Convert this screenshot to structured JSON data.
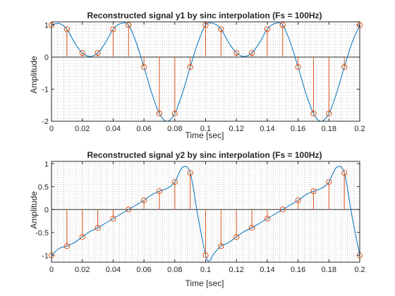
{
  "window": {
    "background": "#ffffff"
  },
  "chart_data": [
    {
      "type": "line",
      "title": "Reconstructed signal y1 by sinc interpolation (Fs = 100Hz)",
      "xlabel": "Time [sec]",
      "ylabel": "Amplitude",
      "xlim": [
        0,
        0.2
      ],
      "ylim": [
        -2,
        1.1
      ],
      "xticks": [
        0,
        0.02,
        0.04,
        0.06,
        0.08,
        0.1,
        0.12,
        0.14,
        0.16,
        0.18,
        0.2
      ],
      "xtick_labels": [
        "0",
        "0.02",
        "0.04",
        "0.06",
        "0.08",
        "0.1",
        "0.12",
        "0.14",
        "0.16",
        "0.18",
        "0.2"
      ],
      "yticks": [
        -2,
        -1,
        0,
        1
      ],
      "ytick_labels": [
        "-2",
        "-1",
        "0",
        "1"
      ],
      "grid": "minor dotted",
      "series": [
        {
          "kind": "line",
          "color": "#0072BD",
          "x": [
            0,
            0.005,
            0.01,
            0.015,
            0.02,
            0.025,
            0.03,
            0.035,
            0.04,
            0.045,
            0.05,
            0.055,
            0.06,
            0.065,
            0.07,
            0.075,
            0.08,
            0.085,
            0.09,
            0.095,
            0.1,
            0.105,
            0.11,
            0.115,
            0.12,
            0.125,
            0.13,
            0.135,
            0.14,
            0.145,
            0.15,
            0.155,
            0.16,
            0.165,
            0.17,
            0.175,
            0.18,
            0.185,
            0.19,
            0.195,
            0.2
          ],
          "y": [
            1.0,
            1.05,
            0.87,
            0.45,
            0.13,
            0.02,
            0.13,
            0.45,
            0.87,
            1.05,
            1.0,
            0.45,
            -0.31,
            -1.12,
            -1.76,
            -2.0,
            -1.76,
            -1.12,
            -0.31,
            0.45,
            1.0,
            1.05,
            0.87,
            0.45,
            0.13,
            0.02,
            0.13,
            0.45,
            0.87,
            1.05,
            1.0,
            0.45,
            -0.31,
            -1.12,
            -1.76,
            -2.0,
            -1.76,
            -1.12,
            -0.31,
            0.45,
            1.0
          ]
        },
        {
          "kind": "stem",
          "color": "#D95319",
          "x": [
            0,
            0.01,
            0.02,
            0.03,
            0.04,
            0.05,
            0.06,
            0.07,
            0.08,
            0.09,
            0.1,
            0.11,
            0.12,
            0.13,
            0.14,
            0.15,
            0.16,
            0.17,
            0.18,
            0.19,
            0.2
          ],
          "y": [
            1.0,
            0.87,
            0.13,
            0.13,
            0.87,
            1.0,
            -0.31,
            -1.76,
            -1.76,
            -0.31,
            1.0,
            0.87,
            0.13,
            0.13,
            0.87,
            1.0,
            -0.31,
            -1.76,
            -1.76,
            -0.31,
            1.0
          ]
        }
      ]
    },
    {
      "type": "line",
      "title": "Reconstructed signal y2 by sinc interpolation (Fs = 100Hz)",
      "xlabel": "Time [sec]",
      "ylabel": "Amplitude",
      "xlim": [
        0,
        0.2
      ],
      "ylim": [
        -1.15,
        1.05
      ],
      "xticks": [
        0,
        0.02,
        0.04,
        0.06,
        0.08,
        0.1,
        0.12,
        0.14,
        0.16,
        0.18,
        0.2
      ],
      "xtick_labels": [
        "0",
        "0.02",
        "0.04",
        "0.06",
        "0.08",
        "0.1",
        "0.12",
        "0.14",
        "0.16",
        "0.18",
        "0.2"
      ],
      "yticks": [
        -1,
        -0.5,
        0,
        0.5,
        1
      ],
      "ytick_labels": [
        "-1",
        "-0.5",
        "0",
        "0.5",
        "1"
      ],
      "grid": "minor dotted",
      "series": [
        {
          "kind": "line",
          "color": "#0072BD",
          "x": [
            0,
            0.005,
            0.01,
            0.015,
            0.02,
            0.025,
            0.03,
            0.035,
            0.04,
            0.045,
            0.05,
            0.055,
            0.06,
            0.065,
            0.07,
            0.075,
            0.08,
            0.085,
            0.09,
            0.095,
            0.1,
            0.1025,
            0.105,
            0.11,
            0.115,
            0.12,
            0.125,
            0.13,
            0.135,
            0.14,
            0.145,
            0.15,
            0.155,
            0.16,
            0.165,
            0.17,
            0.175,
            0.18,
            0.185,
            0.19,
            0.195,
            0.2
          ],
          "y": [
            -1.0,
            -0.85,
            -0.8,
            -0.72,
            -0.6,
            -0.48,
            -0.4,
            -0.3,
            -0.2,
            -0.1,
            0.0,
            0.1,
            0.2,
            0.32,
            0.4,
            0.46,
            0.6,
            0.92,
            0.8,
            -0.15,
            -1.0,
            -1.12,
            -0.98,
            -0.8,
            -0.72,
            -0.6,
            -0.48,
            -0.4,
            -0.3,
            -0.2,
            -0.1,
            0.0,
            0.1,
            0.2,
            0.32,
            0.4,
            0.46,
            0.6,
            0.92,
            0.8,
            -0.15,
            -1.0
          ]
        },
        {
          "kind": "stem",
          "color": "#D95319",
          "x": [
            0,
            0.01,
            0.02,
            0.03,
            0.04,
            0.05,
            0.06,
            0.07,
            0.08,
            0.09,
            0.1,
            0.11,
            0.12,
            0.13,
            0.14,
            0.15,
            0.16,
            0.17,
            0.18,
            0.19,
            0.2
          ],
          "y": [
            -1.0,
            -0.8,
            -0.6,
            -0.4,
            -0.2,
            0.0,
            0.2,
            0.4,
            0.6,
            0.8,
            -1.0,
            -0.8,
            -0.6,
            -0.4,
            -0.2,
            0.0,
            0.2,
            0.4,
            0.6,
            0.8,
            -1.0
          ]
        }
      ]
    }
  ]
}
